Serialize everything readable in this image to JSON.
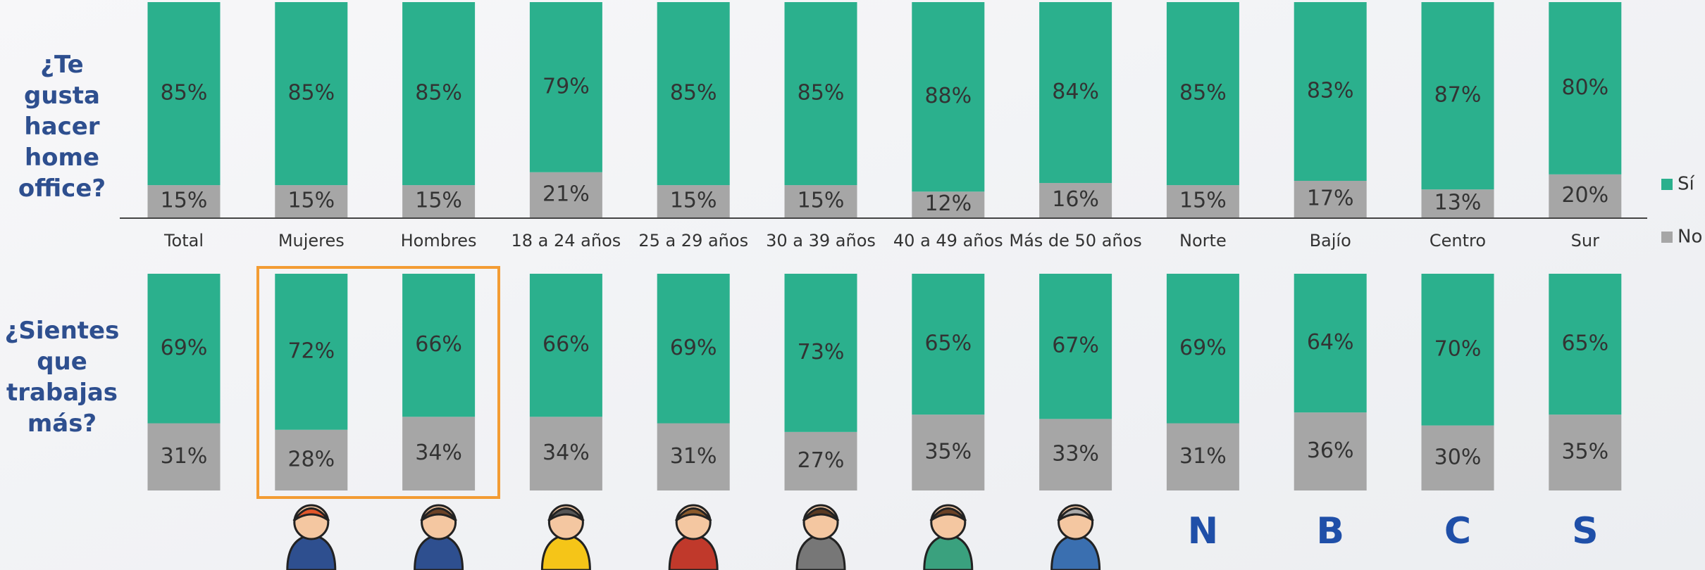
{
  "chart_data": [
    {
      "type": "bar",
      "stacked": true,
      "title": "¿Te gusta hacer home office?",
      "categories": [
        "Total",
        "Mujeres",
        "Hombres",
        "18 a 24 años",
        "25 a 29 años",
        "30 a 39 años",
        "40 a 49 años",
        "Más de 50 años",
        "Norte",
        "Bajío",
        "Centro",
        "Sur"
      ],
      "ylim": [
        0,
        100
      ],
      "series": [
        {
          "name": "Sí",
          "color": "#2bb08d",
          "values": [
            85,
            85,
            85,
            79,
            85,
            85,
            88,
            84,
            85,
            83,
            87,
            80
          ],
          "value_labels": [
            "85%",
            "85%",
            "85%",
            "79%",
            "85%",
            "85%",
            "88%",
            "84%",
            "85%",
            "83%",
            "87%",
            "80%"
          ]
        },
        {
          "name": "No",
          "color": "#a6a6a6",
          "values": [
            15,
            15,
            15,
            21,
            15,
            15,
            12,
            16,
            15,
            17,
            13,
            20
          ],
          "value_labels": [
            "15%",
            "15%",
            "15%",
            "21%",
            "15%",
            "15%",
            "12%",
            "16%",
            "15%",
            "17%",
            "13%",
            "20%"
          ]
        }
      ]
    },
    {
      "type": "bar",
      "stacked": true,
      "title": "¿Sientes que trabajas más?",
      "ylim": [
        0,
        100
      ],
      "series": [
        {
          "color": "#2bb08d",
          "values": [
            69,
            72,
            66,
            66,
            69,
            73,
            65,
            67,
            69,
            64,
            70,
            65
          ],
          "value_labels": [
            "69%",
            "72%",
            "66%",
            "66%",
            "69%",
            "73%",
            "65%",
            "67%",
            "69%",
            "64%",
            "70%",
            "65%"
          ]
        },
        {
          "color": "#a6a6a6",
          "values": [
            31,
            28,
            34,
            34,
            31,
            27,
            35,
            33,
            31,
            36,
            30,
            35
          ],
          "value_labels": [
            "31%",
            "28%",
            "34%",
            "34%",
            "31%",
            "27%",
            "35%",
            "33%",
            "31%",
            "36%",
            "30%",
            "35%"
          ]
        }
      ]
    }
  ],
  "region_icons": [
    "N",
    "B",
    "C",
    "S"
  ]
}
